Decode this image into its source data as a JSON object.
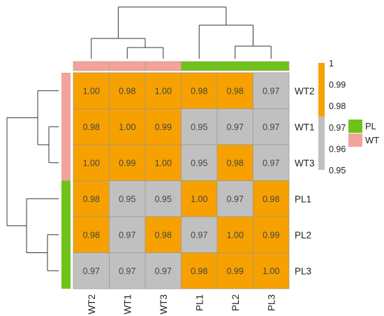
{
  "chart_data": {
    "type": "heatmap",
    "title": "",
    "rows": [
      "WT2",
      "WT1",
      "WT3",
      "PL1",
      "PL2",
      "PL3"
    ],
    "cols": [
      "WT2",
      "WT1",
      "WT3",
      "PL1",
      "PL2",
      "PL3"
    ],
    "values": [
      [
        1.0,
        0.98,
        1.0,
        0.98,
        0.98,
        0.97
      ],
      [
        0.98,
        1.0,
        0.99,
        0.95,
        0.97,
        0.97
      ],
      [
        1.0,
        0.99,
        1.0,
        0.95,
        0.98,
        0.97
      ],
      [
        0.98,
        0.95,
        0.95,
        1.0,
        0.97,
        0.98
      ],
      [
        0.98,
        0.97,
        0.98,
        0.97,
        1.0,
        0.99
      ],
      [
        0.97,
        0.97,
        0.97,
        0.98,
        0.99,
        1.0
      ]
    ],
    "value_labels": [
      [
        "1.00",
        "0.98",
        "1.00",
        "0.98",
        "0.98",
        "0.97"
      ],
      [
        "0.98",
        "1.00",
        "0.99",
        "0.95",
        "0.97",
        "0.97"
      ],
      [
        "1.00",
        "0.99",
        "1.00",
        "0.95",
        "0.98",
        "0.97"
      ],
      [
        "0.98",
        "0.95",
        "0.95",
        "1.00",
        "0.97",
        "0.98"
      ],
      [
        "0.98",
        "0.97",
        "0.98",
        "0.97",
        "1.00",
        "0.99"
      ],
      [
        "0.97",
        "0.97",
        "0.97",
        "0.98",
        "0.99",
        "1.00"
      ]
    ],
    "groups": [
      "WT",
      "WT",
      "WT",
      "PL",
      "PL",
      "PL"
    ],
    "color_scale": {
      "threshold": 0.975,
      "low_color": "#c0c0c0",
      "high_color": "#f6a100",
      "range": [
        0.95,
        1.0
      ],
      "ticks": [
        "1",
        "0.99",
        "0.98",
        "0.97",
        "0.96",
        "0.95"
      ]
    },
    "group_legend": [
      {
        "name": "PL",
        "color": "#6ec21a"
      },
      {
        "name": "WT",
        "color": "#f3a39c"
      }
    ],
    "row_dendrogram": "((PL1,(PL2,PL3)),(WT2,(WT1,WT3)))",
    "col_dendrogram": "((WT2,(WT1,WT3)),(PL1,(PL2,PL3)))"
  }
}
